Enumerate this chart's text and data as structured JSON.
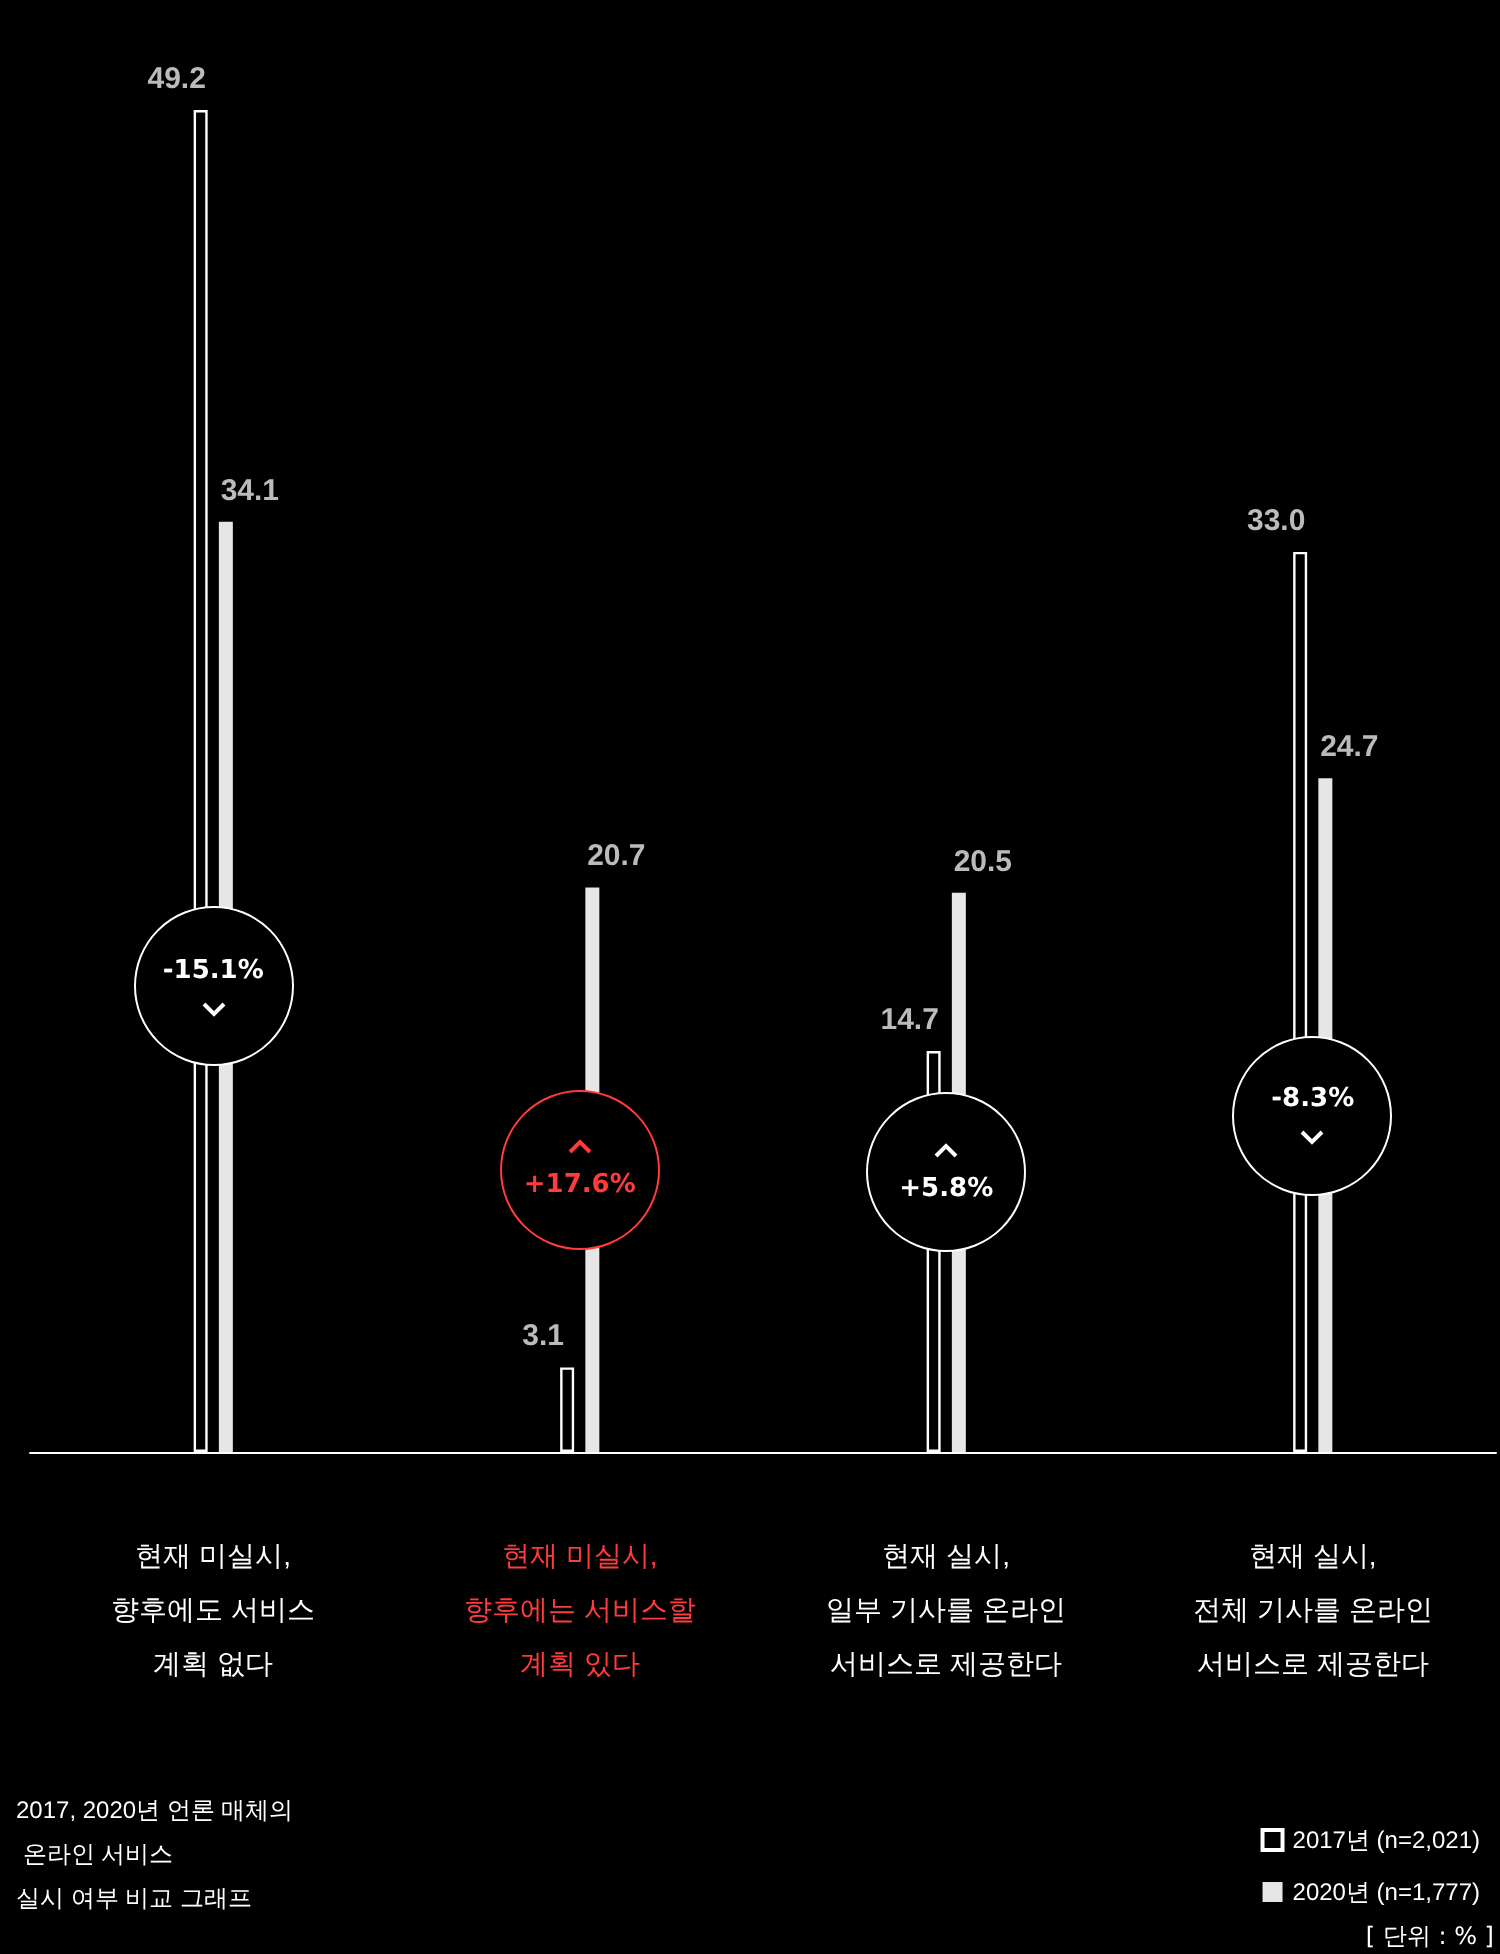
{
  "chart_data": {
    "type": "bar",
    "title": "2017, 2020년 언론 매체의\n 온라인 서비스\n실시 여부 비교 그래프",
    "categories": [
      "현재 미실시,\n향후에도 서비스\n계획 없다",
      "현재 미실시,\n향후에는 서비스할\n계획 있다",
      "현재 실시,\n일부 기사를 온라인\n서비스로 제공한다",
      "현재 실시,\n전체 기사를 온라인\n서비스로 제공한다"
    ],
    "series": [
      {
        "name": "2017년 (n=2,021)",
        "color": "#ffffff",
        "values": [
          49.2,
          3.1,
          14.7,
          33.0
        ],
        "value_labels": [
          "49.2",
          "3.1",
          "14.7",
          "33.0"
        ]
      },
      {
        "name": "2020년 (n=1,777)",
        "color": "#e6e6e6",
        "values": [
          34.1,
          20.7,
          20.5,
          24.7
        ],
        "value_labels": [
          "34.1",
          "20.7",
          "20.5",
          "24.7"
        ]
      }
    ],
    "legend": "bottom right",
    "annotations": [
      "-15.1%",
      "+17.6%",
      "+5.8%",
      "-8.3%",
      "[ 단위 : % ]"
    ]
  }
}
